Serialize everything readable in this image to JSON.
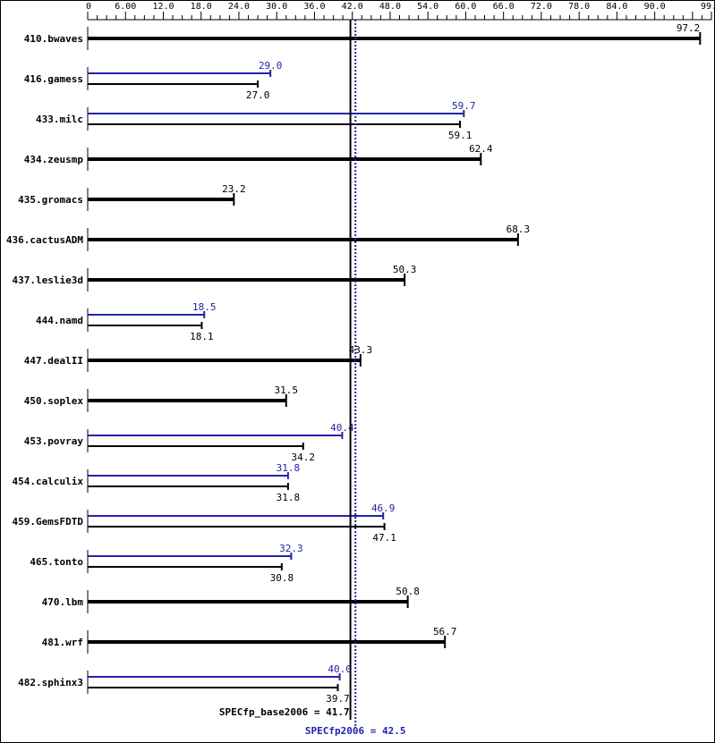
{
  "chart_data": {
    "type": "bar",
    "orientation": "horizontal",
    "xlim": [
      0,
      99
    ],
    "x_tick_labels": [
      "0",
      "6.00",
      "12.0",
      "18.0",
      "24.0",
      "30.0",
      "36.0",
      "42.0",
      "48.0",
      "54.0",
      "60.0",
      "66.0",
      "72.0",
      "78.0",
      "84.0",
      "90.0",
      "99.0"
    ],
    "categories": [
      "410.bwaves",
      "416.gamess",
      "433.milc",
      "434.zeusmp",
      "435.gromacs",
      "436.cactusADM",
      "437.leslie3d",
      "444.namd",
      "447.dealII",
      "450.soplex",
      "453.povray",
      "454.calculix",
      "459.GemsFDTD",
      "465.tonto",
      "470.lbm",
      "481.wrf",
      "482.sphinx3"
    ],
    "series": [
      {
        "key": "base",
        "color": "#000000",
        "values": [
          97.2,
          27.0,
          59.1,
          62.4,
          23.2,
          68.3,
          50.3,
          18.1,
          43.3,
          31.5,
          34.2,
          31.8,
          47.1,
          30.8,
          50.8,
          56.7,
          39.7
        ]
      },
      {
        "key": "peak",
        "color": "#2222aa",
        "values": [
          null,
          29.0,
          59.7,
          null,
          null,
          null,
          null,
          18.5,
          null,
          null,
          40.4,
          31.8,
          46.9,
          32.3,
          null,
          null,
          40.0
        ]
      }
    ],
    "value_labels": {
      "base": [
        "97.2",
        "27.0",
        "59.1",
        "62.4",
        "23.2",
        "68.3",
        "50.3",
        "18.1",
        "43.3",
        "31.5",
        "34.2",
        "31.8",
        "47.1",
        "30.8",
        "50.8",
        "56.7",
        "39.7"
      ],
      "peak": [
        null,
        "29.0",
        "59.7",
        null,
        null,
        null,
        null,
        "18.5",
        null,
        null,
        "40.4",
        "31.8",
        "46.9",
        "32.3",
        null,
        null,
        "40.0"
      ]
    },
    "reference_lines": [
      {
        "label": "SPECfp_base2006 = 41.7",
        "value": 41.7,
        "color": "#000000",
        "style": "solid"
      },
      {
        "label": "SPECfp2006 = 42.5",
        "value": 42.5,
        "color": "#2222aa",
        "style": "dotted"
      }
    ],
    "grid": false
  }
}
